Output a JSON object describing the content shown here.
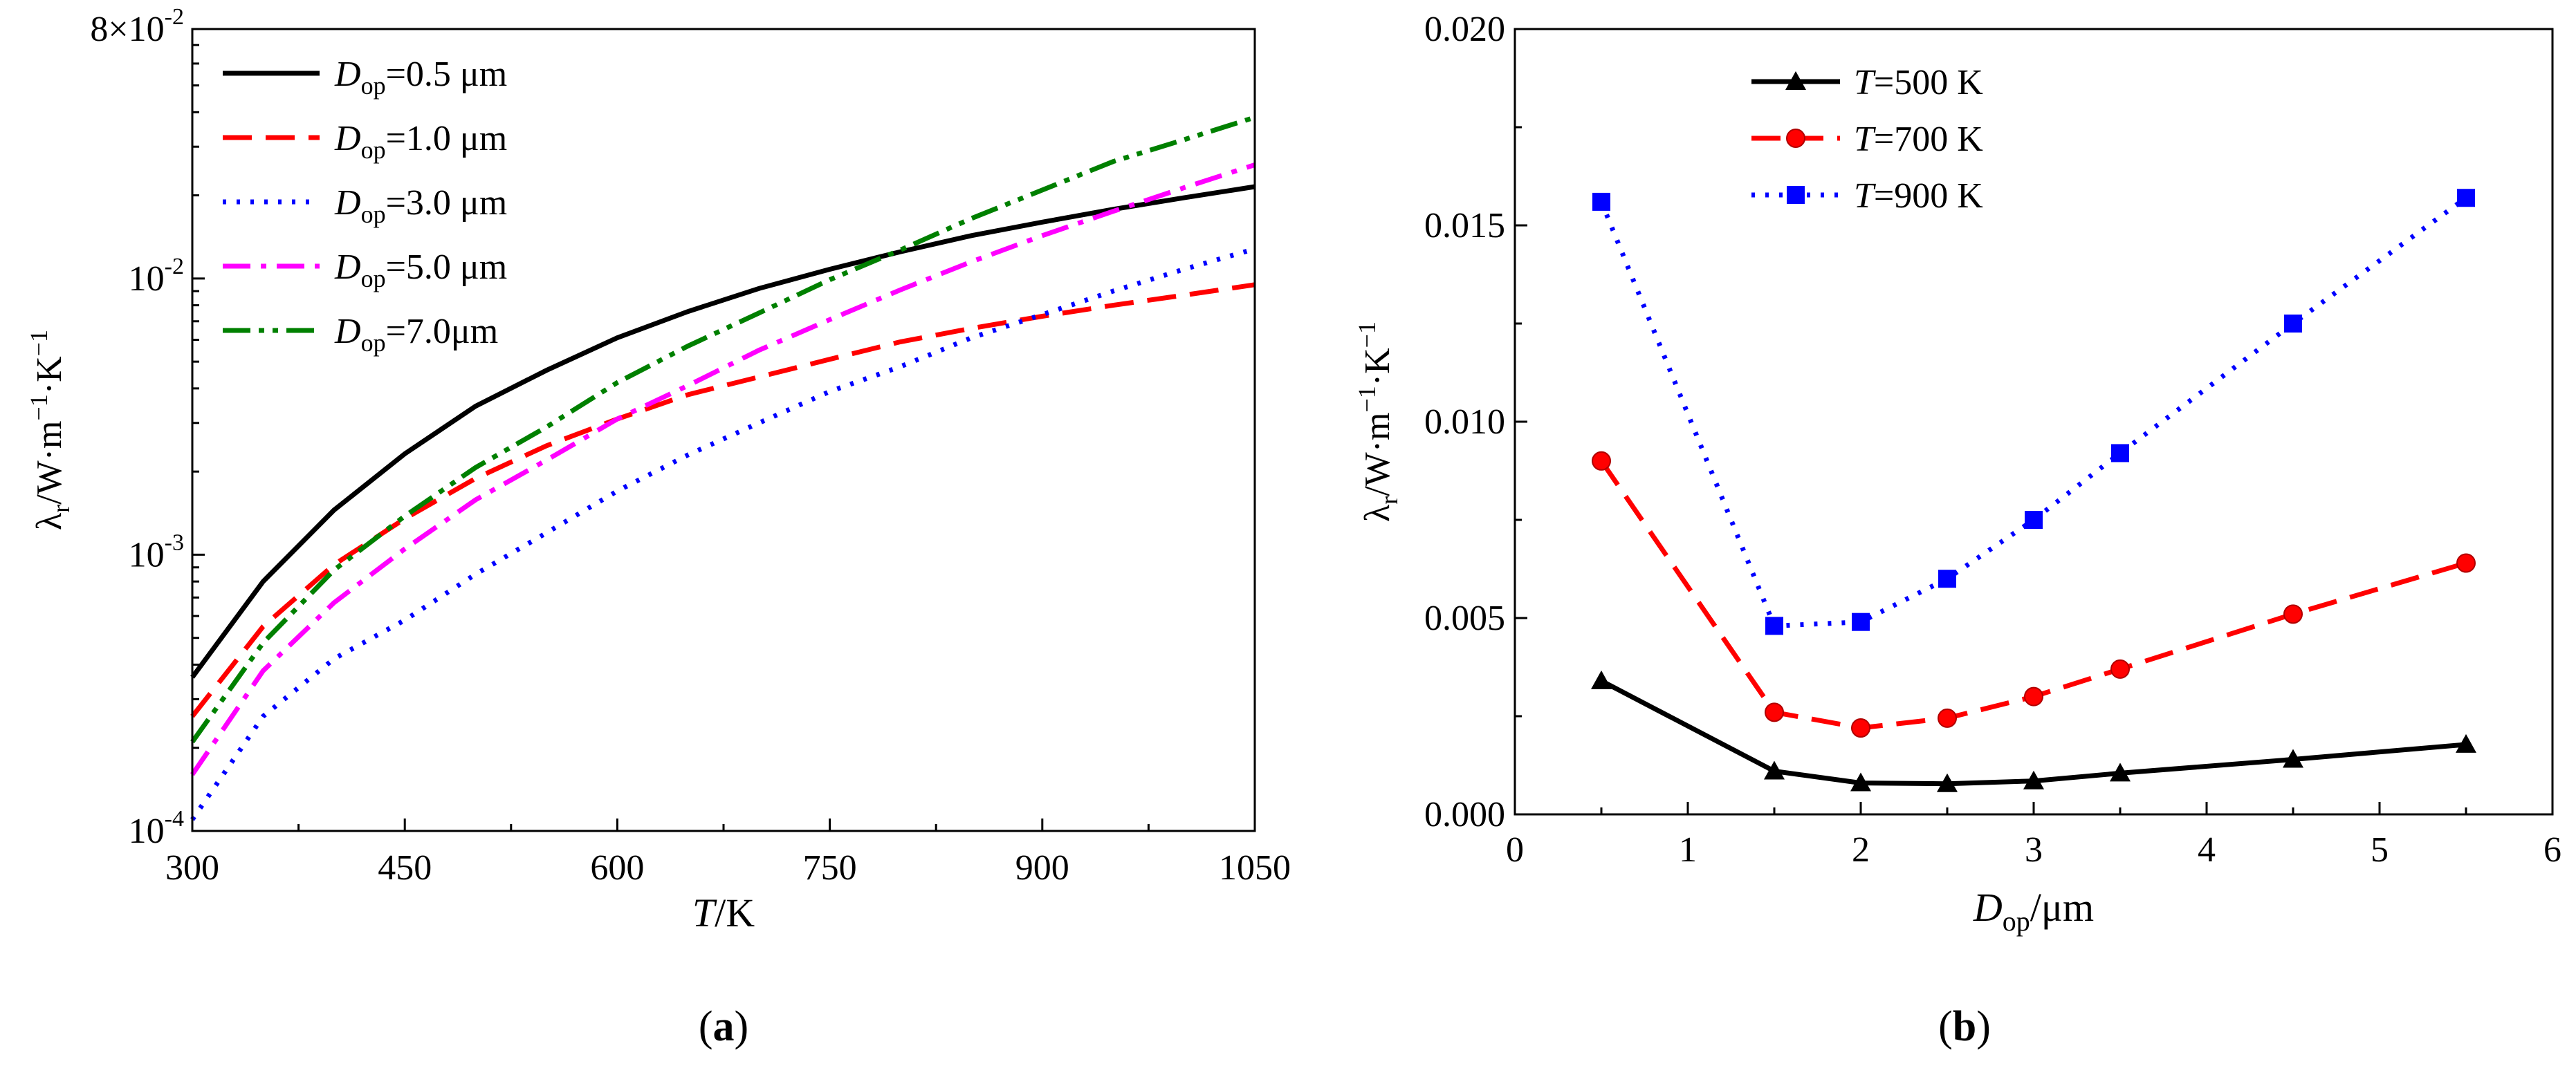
{
  "chart_data": [
    {
      "panel": "a",
      "caption_letter": "a",
      "type": "line",
      "y_scale": "log",
      "xlabel": {
        "var": "T",
        "rest": "/K"
      },
      "ylabel": {
        "sym": "λ",
        "sub": "r",
        "unit": "/W·m",
        "exp1": "−1",
        "mid": "·K",
        "exp2": "−1"
      },
      "xlim": [
        300,
        1050
      ],
      "ylim": [
        0.0001,
        0.08
      ],
      "xticks": [
        "300",
        "450",
        "600",
        "750",
        "900",
        "1050"
      ],
      "xtick_values": [
        300,
        450,
        600,
        750,
        900,
        1050
      ],
      "yticks": [
        {
          "value": 0.0001,
          "mant": "",
          "base": "10",
          "exp": "-4"
        },
        {
          "value": 0.001,
          "mant": "",
          "base": "10",
          "exp": "-3"
        },
        {
          "value": 0.01,
          "mant": "",
          "base": "10",
          "exp": "-2"
        },
        {
          "value": 0.08,
          "mant": "8×",
          "base": "10",
          "exp": "-2"
        }
      ],
      "legend_position": "top-left",
      "x": [
        300,
        350,
        400,
        450,
        500,
        550,
        600,
        650,
        700,
        750,
        800,
        850,
        900,
        950,
        1000,
        1050
      ],
      "series": [
        {
          "name": "D_op=0.5 μm",
          "label_var": "D",
          "label_sub": "op",
          "label_rest": "=0.5 μm",
          "color": "#000000",
          "style": "solid",
          "values": [
            0.00036,
            0.0008,
            0.00145,
            0.00232,
            0.00345,
            0.00465,
            0.0061,
            0.0076,
            0.0092,
            0.0108,
            0.0125,
            0.0143,
            0.016,
            0.0178,
            0.0196,
            0.0215
          ]
        },
        {
          "name": "D_op=1.0 μm",
          "label_var": "D",
          "label_sub": "op",
          "label_rest": "=1.0 μm",
          "color": "#ff0000",
          "style": "dash",
          "values": [
            0.00026,
            0.00055,
            0.00092,
            0.00135,
            0.00189,
            0.00248,
            0.0031,
            0.0038,
            0.0044,
            0.0051,
            0.0059,
            0.0066,
            0.0073,
            0.008,
            0.0087,
            0.0095
          ]
        },
        {
          "name": "D_op=3.0 μm",
          "label_var": "D",
          "label_sub": "op",
          "label_rest": "=3.0 μm",
          "color": "#0000ff",
          "style": "dot",
          "values": [
            0.00011,
            0.00026,
            0.00042,
            0.00058,
            0.00085,
            0.0012,
            0.0017,
            0.0023,
            0.003,
            0.0039,
            0.0048,
            0.0061,
            0.0074,
            0.009,
            0.0108,
            0.0128
          ]
        },
        {
          "name": "D_op=5.0 μm",
          "label_var": "D",
          "label_sub": "op",
          "label_rest": "=5.0 μm",
          "color": "#ff00ff",
          "style": "dashdot",
          "values": [
            0.00016,
            0.00038,
            0.00067,
            0.00105,
            0.00158,
            0.0022,
            0.0031,
            0.0041,
            0.0055,
            0.0071,
            0.0091,
            0.0115,
            0.0143,
            0.0175,
            0.0213,
            0.0258
          ]
        },
        {
          "name": "D_op=7.0μm",
          "label_var": "D",
          "label_sub": "op",
          "label_rest": "=7.0μm",
          "color": "#008000",
          "style": "dashdotdot",
          "values": [
            0.00021,
            0.00048,
            0.00088,
            0.00138,
            0.00207,
            0.0029,
            0.0042,
            0.0057,
            0.0075,
            0.0099,
            0.0127,
            0.0165,
            0.0209,
            0.0265,
            0.0318,
            0.0383
          ]
        }
      ]
    },
    {
      "panel": "b",
      "caption_letter": "b",
      "type": "line",
      "y_scale": "linear",
      "xlabel": {
        "var": "D",
        "sub": "op",
        "rest": "/μm"
      },
      "ylabel": {
        "sym": "λ",
        "sub": "r",
        "unit": "/W·m",
        "exp1": "−1",
        "mid": "·K",
        "exp2": "−1"
      },
      "xlim": [
        0,
        6
      ],
      "ylim": [
        0,
        0.02
      ],
      "xticks": [
        "0",
        "1",
        "2",
        "3",
        "4",
        "5",
        "6"
      ],
      "xtick_values": [
        0,
        1,
        2,
        3,
        4,
        5,
        6
      ],
      "yticks": [
        "0.000",
        "0.005",
        "0.010",
        "0.015",
        "0.020"
      ],
      "ytick_values": [
        0,
        0.005,
        0.01,
        0.015,
        0.02
      ],
      "legend_position": "top-left",
      "x": [
        0.5,
        1.5,
        2,
        2.5,
        3,
        3.5,
        4.5,
        5.5
      ],
      "series": [
        {
          "name": "T=500 K",
          "label_var": "T",
          "label_rest": "=500 K",
          "color": "#000000",
          "style": "solid",
          "marker": "triangle",
          "values": [
            0.0034,
            0.0011,
            0.0008,
            0.00078,
            0.00085,
            0.00105,
            0.0014,
            0.00178
          ]
        },
        {
          "name": "T=700 K",
          "label_var": "T",
          "label_rest": "=700 K",
          "color": "#ff0000",
          "style": "dash",
          "marker": "circle",
          "values": [
            0.009,
            0.0026,
            0.0022,
            0.00245,
            0.003,
            0.0037,
            0.0051,
            0.0064
          ]
        },
        {
          "name": "T=900 K",
          "label_var": "T",
          "label_rest": "=900 K",
          "color": "#0000ff",
          "style": "dot",
          "marker": "square",
          "values": [
            0.0156,
            0.0048,
            0.0049,
            0.006,
            0.0075,
            0.0092,
            0.0125,
            0.0157
          ]
        }
      ]
    }
  ]
}
